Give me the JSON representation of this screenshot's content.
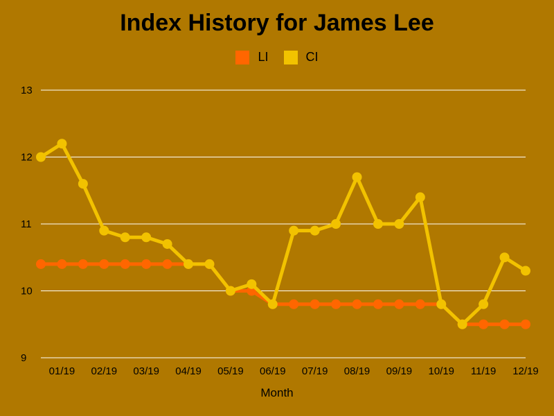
{
  "chart_data": {
    "type": "line",
    "title": "Index History for James Lee",
    "xlabel": "Month",
    "ylabel": "",
    "ylim": [
      9,
      13
    ],
    "yticks": [
      "9",
      "10",
      "11",
      "12",
      "13"
    ],
    "x_tick_labels": [
      "01/19",
      "02/19",
      "03/19",
      "04/19",
      "05/19",
      "06/19",
      "07/19",
      "08/19",
      "09/19",
      "10/19",
      "11/19",
      "12/19"
    ],
    "grid": "horizontal",
    "legend_position": "top-center",
    "series": [
      {
        "name": "LI",
        "color": "#ff6600",
        "values": [
          10.4,
          10.4,
          10.4,
          10.4,
          10.4,
          10.4,
          10.4,
          10.4,
          10.4,
          10.0,
          10.0,
          9.8,
          9.8,
          9.8,
          9.8,
          9.8,
          9.8,
          9.8,
          9.8,
          9.8,
          9.5,
          9.5,
          9.5,
          9.5
        ]
      },
      {
        "name": "CI",
        "color": "#f2c200",
        "values": [
          12.0,
          12.2,
          11.6,
          10.9,
          10.8,
          10.8,
          10.7,
          10.4,
          10.4,
          10.0,
          10.1,
          9.8,
          10.9,
          10.9,
          11.0,
          11.7,
          11.0,
          11.0,
          11.4,
          9.8,
          9.5,
          9.8,
          10.5,
          10.3
        ]
      }
    ]
  }
}
